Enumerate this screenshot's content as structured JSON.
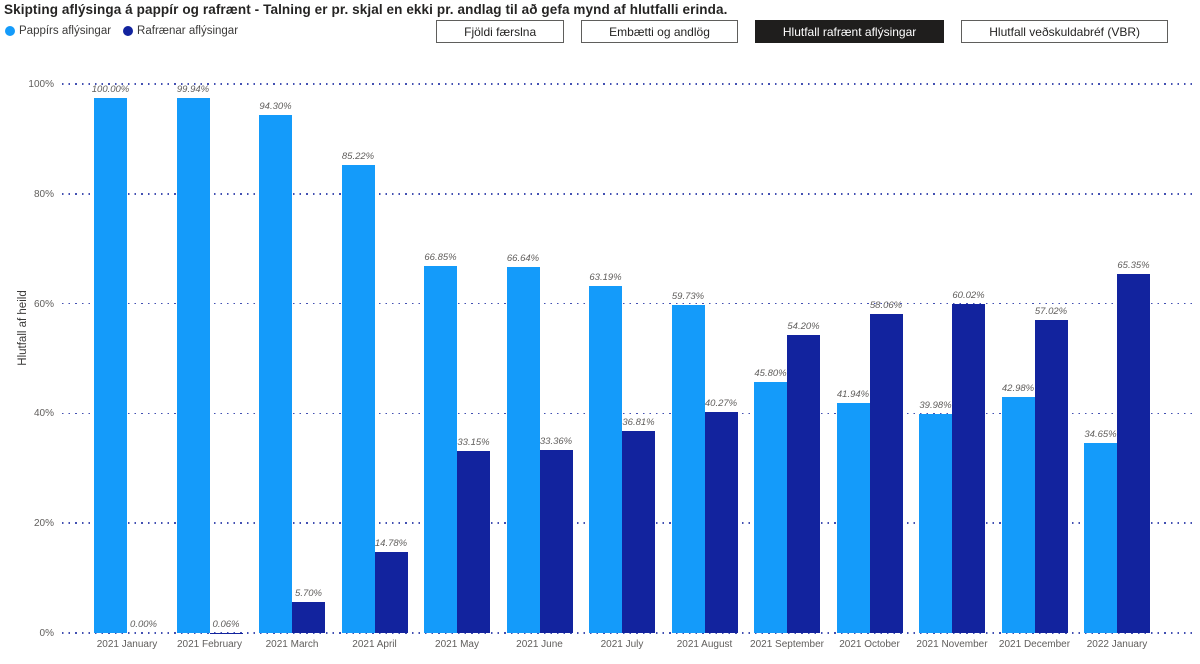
{
  "title": "Skipting aflýsinga á pappír og rafrænt - Talning er pr. skjal en ekki pr. andlag til að gefa mynd af hlutfalli erinda.",
  "legend": {
    "items": [
      {
        "label": "Pappírs aflýsingar",
        "color": "#149BFA"
      },
      {
        "label": "Rafrænar aflýsingar",
        "color": "#12239E"
      }
    ]
  },
  "buttons": [
    {
      "label": "Fjöldi færslna",
      "active": false
    },
    {
      "label": "Embætti og andlög",
      "active": false
    },
    {
      "label": "Hlutfall rafrænt aflýsingar",
      "active": true
    },
    {
      "label": "Hlutfall veðskuldabréf (VBR)",
      "active": false
    }
  ],
  "colors": {
    "paper": "#149BFA",
    "electronic": "#12239E",
    "gridline": "#12239E",
    "label_text": "#605E5C",
    "active_button_bg": "#1f1e1d"
  },
  "chart_data": {
    "type": "bar",
    "title": "Skipting aflýsinga á pappír og rafrænt - Talning er pr. skjal en ekki pr. andlag til að gefa mynd af hlutfalli erinda.",
    "xlabel": "",
    "ylabel": "Hlutfall af heild",
    "ylim": [
      0,
      100
    ],
    "yticks": [
      "0%",
      "20%",
      "40%",
      "60%",
      "80%",
      "100%"
    ],
    "grid": "dotted-horizontal",
    "legend_position": "top-left",
    "value_label_format": "0.00%",
    "categories": [
      "2021 January",
      "2021 February",
      "2021 March",
      "2021 April",
      "2021 May",
      "2021 June",
      "2021 July",
      "2021 August",
      "2021 September",
      "2021 October",
      "2021 November",
      "2021 December",
      "2022 January"
    ],
    "series": [
      {
        "name": "Pappírs aflýsingar",
        "color": "#149BFA",
        "values": [
          100.0,
          99.94,
          94.3,
          85.22,
          66.85,
          66.64,
          63.19,
          59.73,
          45.8,
          41.94,
          39.98,
          42.98,
          34.65
        ]
      },
      {
        "name": "Rafrænar aflýsingar",
        "color": "#12239E",
        "values": [
          0.0,
          0.06,
          5.7,
          14.78,
          33.15,
          33.36,
          36.81,
          40.27,
          54.2,
          58.06,
          60.02,
          57.02,
          65.35
        ]
      }
    ]
  }
}
